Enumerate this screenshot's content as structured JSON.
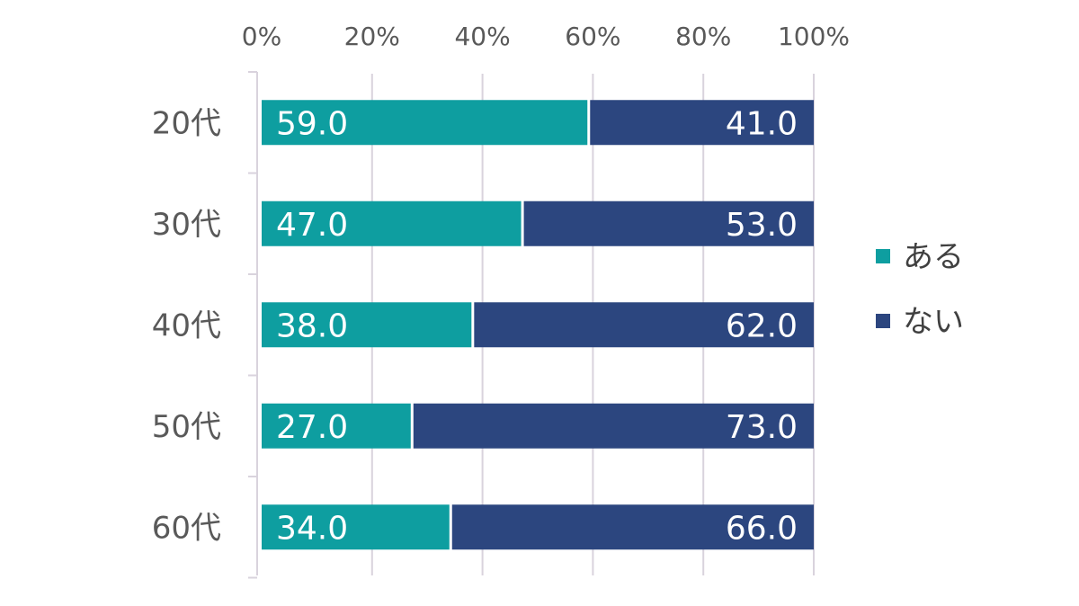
{
  "chart_data": {
    "type": "bar",
    "orientation": "horizontal",
    "stacked": true,
    "categories": [
      "20代",
      "30代",
      "40代",
      "50代",
      "60代"
    ],
    "series": [
      {
        "name": "ある",
        "values": [
          59.0,
          47.0,
          38.0,
          27.0,
          34.0
        ],
        "color": "#0e9ea0"
      },
      {
        "name": "ない",
        "values": [
          41.0,
          53.0,
          62.0,
          73.0,
          66.0
        ],
        "color": "#2c467f"
      }
    ],
    "value_labels": [
      [
        "59.0",
        "47.0",
        "38.0",
        "27.0",
        "34.0"
      ],
      [
        "41.0",
        "53.0",
        "62.0",
        "73.0",
        "66.0"
      ]
    ],
    "xlim": [
      0,
      100
    ],
    "x_ticks": [
      "0%",
      "20%",
      "40%",
      "60%",
      "80%",
      "100%"
    ],
    "x_axis_position": "top",
    "grid": true,
    "legend_position": "right"
  }
}
